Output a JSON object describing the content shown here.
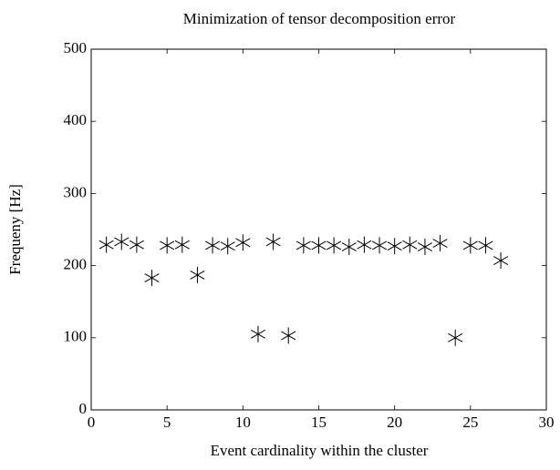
{
  "chart_data": {
    "type": "scatter",
    "title": "Minimization of tensor decomposition error",
    "xlabel": "Event cardinality within the cluster",
    "ylabel": "Frequeny [Hz]",
    "x": [
      1,
      2,
      3,
      4,
      5,
      6,
      7,
      8,
      9,
      10,
      11,
      12,
      13,
      14,
      15,
      16,
      17,
      18,
      19,
      20,
      21,
      22,
      23,
      24,
      25,
      26,
      27
    ],
    "values": [
      229,
      233,
      229,
      183,
      228,
      229,
      187,
      228,
      227,
      232,
      105,
      233,
      103,
      228,
      228,
      228,
      226,
      229,
      228,
      227,
      229,
      226,
      231,
      100,
      228,
      228,
      207
    ],
    "color": "#000000",
    "marker": "asterisk",
    "xlim": [
      0,
      30
    ],
    "xticks": [
      0,
      5,
      10,
      15,
      20,
      25,
      30
    ],
    "ylim": [
      0,
      500
    ],
    "yticks": [
      0,
      100,
      200,
      300,
      400,
      500
    ]
  }
}
